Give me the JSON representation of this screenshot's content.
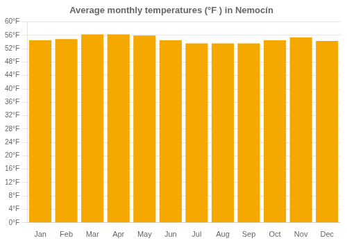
{
  "chart_data": {
    "type": "bar",
    "title": "Average monthly temperatures (°F ) in Nemocín",
    "categories": [
      "Jan",
      "Feb",
      "Mar",
      "Apr",
      "May",
      "Jun",
      "Jul",
      "Aug",
      "Sep",
      "Oct",
      "Nov",
      "Dec"
    ],
    "values": [
      54.5,
      54.9,
      56.3,
      56.3,
      55.9,
      54.5,
      53.6,
      53.6,
      53.6,
      54.5,
      55.4,
      54.3
    ],
    "color": "#F5A800",
    "ylim": [
      0,
      60
    ],
    "yticks": [
      {
        "value": 0,
        "label": "0°F"
      },
      {
        "value": 4,
        "label": "4°F"
      },
      {
        "value": 8,
        "label": "8°F"
      },
      {
        "value": 12,
        "label": "12°F"
      },
      {
        "value": 16,
        "label": "16°F"
      },
      {
        "value": 20,
        "label": "20°F"
      },
      {
        "value": 24,
        "label": "24°F"
      },
      {
        "value": 28,
        "label": "28°F"
      },
      {
        "value": 32,
        "label": "32°F"
      },
      {
        "value": 36,
        "label": "36°F"
      },
      {
        "value": 40,
        "label": "40°F"
      },
      {
        "value": 44,
        "label": "44°F"
      },
      {
        "value": 48,
        "label": "48°F"
      },
      {
        "value": 52,
        "label": "52°F"
      },
      {
        "value": 56,
        "label": "56°F"
      },
      {
        "value": 60,
        "label": "60°F"
      }
    ],
    "grid": true
  }
}
